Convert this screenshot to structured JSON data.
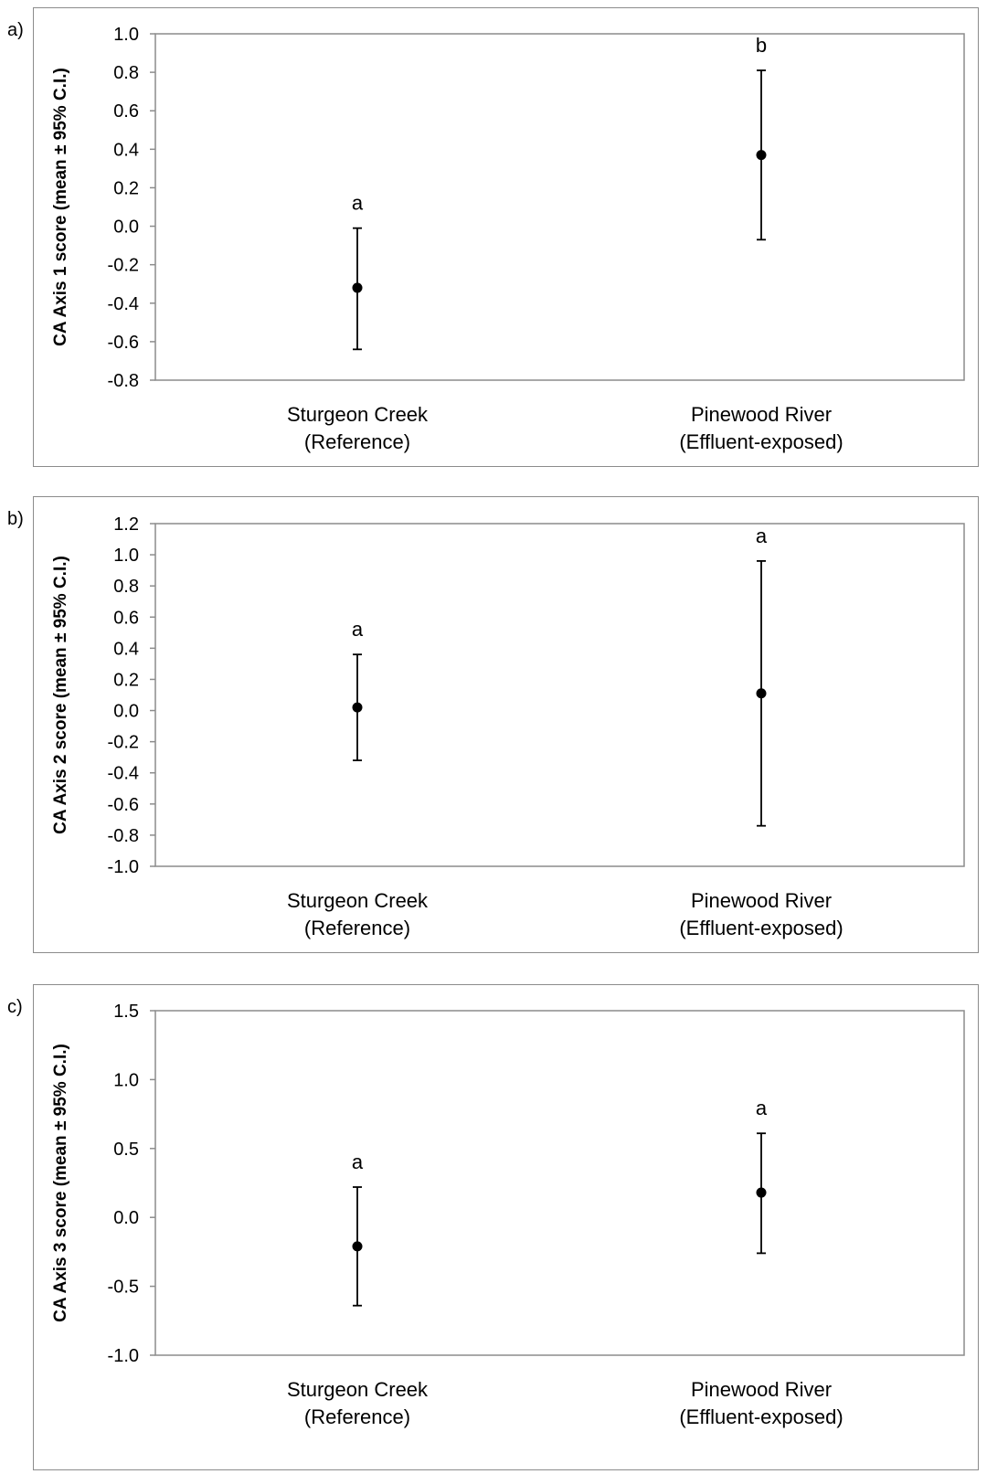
{
  "chart_data": [
    {
      "type": "scatter",
      "panel_label": "a)",
      "ylabel": "CA Axis 1 score (mean ± 95% C.I.)",
      "ylim": [
        -0.8,
        1.0
      ],
      "yticks": [
        "1.0",
        "0.8",
        "0.6",
        "0.4",
        "0.2",
        "0.0",
        "-0.2",
        "-0.4",
        "-0.6",
        "-0.8"
      ],
      "ytick_values": [
        1.0,
        0.8,
        0.6,
        0.4,
        0.2,
        0.0,
        -0.2,
        -0.4,
        -0.6,
        -0.8
      ],
      "categories": [
        {
          "line1": "Sturgeon Creek",
          "line2": "(Reference)"
        },
        {
          "line1": "Pinewood River",
          "line2": "(Effluent-exposed)"
        }
      ],
      "points": [
        {
          "mean": -0.32,
          "lower": -0.64,
          "upper": -0.01,
          "letter": "a"
        },
        {
          "mean": 0.37,
          "lower": -0.07,
          "upper": 0.81,
          "letter": "b"
        }
      ],
      "grid": false
    },
    {
      "type": "scatter",
      "panel_label": "b)",
      "ylabel": "CA Axis 2 score (mean ± 95% C.I.)",
      "ylim": [
        -1.0,
        1.2
      ],
      "yticks": [
        "1.2",
        "1.0",
        "0.8",
        "0.6",
        "0.4",
        "0.2",
        "0.0",
        "-0.2",
        "-0.4",
        "-0.6",
        "-0.8",
        "-1.0"
      ],
      "ytick_values": [
        1.2,
        1.0,
        0.8,
        0.6,
        0.4,
        0.2,
        0.0,
        -0.2,
        -0.4,
        -0.6,
        -0.8,
        -1.0
      ],
      "categories": [
        {
          "line1": "Sturgeon Creek",
          "line2": "(Reference)"
        },
        {
          "line1": "Pinewood River",
          "line2": "(Effluent-exposed)"
        }
      ],
      "points": [
        {
          "mean": 0.02,
          "lower": -0.32,
          "upper": 0.36,
          "letter": "a"
        },
        {
          "mean": 0.11,
          "lower": -0.74,
          "upper": 0.96,
          "letter": "a"
        }
      ],
      "grid": false
    },
    {
      "type": "scatter",
      "panel_label": "c)",
      "ylabel": "CA Axis 3 score (mean ± 95% C.I.)",
      "ylim": [
        -1.0,
        1.5
      ],
      "yticks": [
        "1.5",
        "1.0",
        "0.5",
        "0.0",
        "-0.5",
        "-1.0"
      ],
      "ytick_values": [
        1.5,
        1.0,
        0.5,
        0.0,
        -0.5,
        -1.0
      ],
      "categories": [
        {
          "line1": "Sturgeon Creek",
          "line2": "(Reference)"
        },
        {
          "line1": "Pinewood River",
          "line2": "(Effluent-exposed)"
        }
      ],
      "points": [
        {
          "mean": -0.21,
          "lower": -0.64,
          "upper": 0.22,
          "letter": "a"
        },
        {
          "mean": 0.18,
          "lower": -0.26,
          "upper": 0.61,
          "letter": "a"
        }
      ],
      "grid": false
    }
  ]
}
